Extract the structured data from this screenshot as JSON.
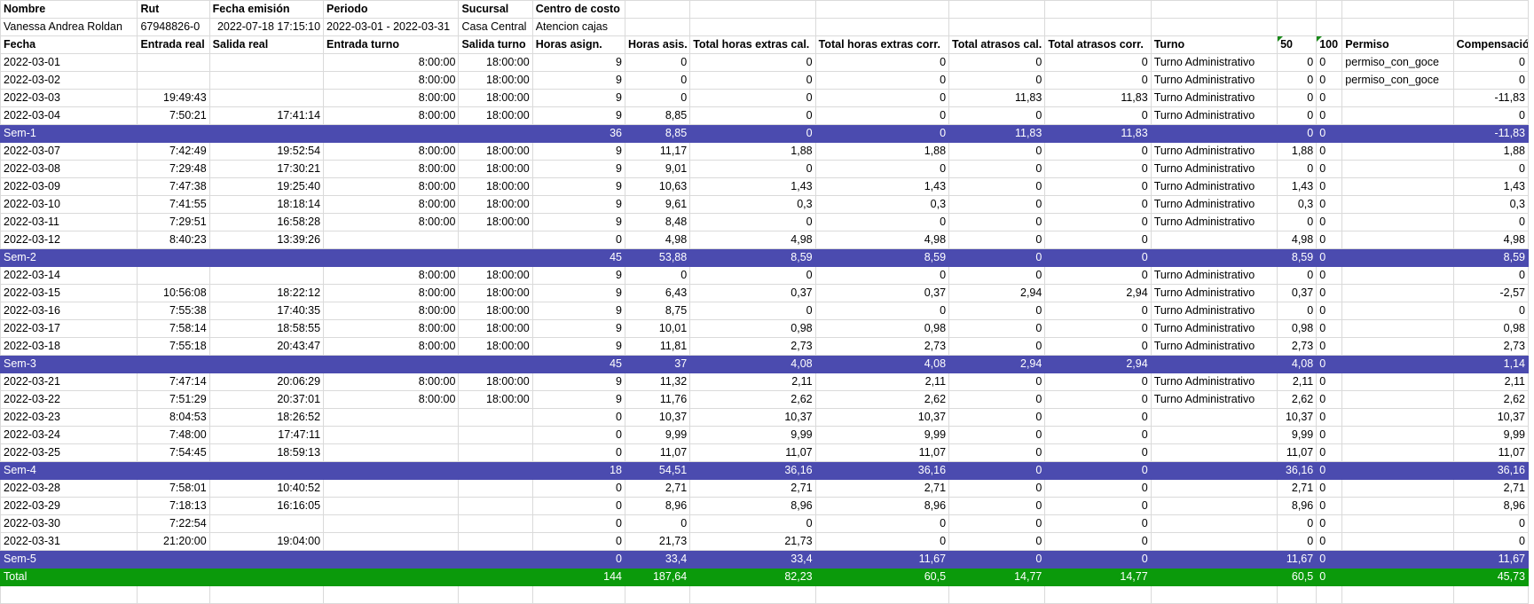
{
  "meta": {
    "labels": [
      "Nombre",
      "Rut",
      "Fecha emisión",
      "Periodo",
      "Sucursal",
      "Centro de costo"
    ],
    "values": [
      "Vanessa Andrea Roldan",
      "67948826-0",
      "2022-07-18 17:15:10",
      "2022-03-01 - 2022-03-31",
      "Casa Central",
      "Atencion cajas"
    ]
  },
  "columns": [
    "Fecha",
    "Entrada real",
    "Salida real",
    "Entrada turno",
    "Salida turno",
    "Horas asign.",
    "Horas asis.",
    "Total horas extras cal.",
    "Total horas extras corr.",
    "Total atrasos cal.",
    "Total atrasos corr.",
    "Turno",
    "50",
    "100",
    "Permiso",
    "Compensación"
  ],
  "rows": [
    {
      "type": "day",
      "cells": [
        "2022-03-01",
        "",
        "",
        "8:00:00",
        "18:00:00",
        "9",
        "0",
        "0",
        "0",
        "0",
        "0",
        "Turno Administrativo",
        "0",
        "0",
        "permiso_con_goce",
        "0"
      ]
    },
    {
      "type": "day",
      "cells": [
        "2022-03-02",
        "",
        "",
        "8:00:00",
        "18:00:00",
        "9",
        "0",
        "0",
        "0",
        "0",
        "0",
        "Turno Administrativo",
        "0",
        "0",
        "permiso_con_goce",
        "0"
      ]
    },
    {
      "type": "day",
      "cells": [
        "2022-03-03",
        "19:49:43",
        "",
        "8:00:00",
        "18:00:00",
        "9",
        "0",
        "0",
        "0",
        "11,83",
        "11,83",
        "Turno Administrativo",
        "0",
        "0",
        "",
        "-11,83"
      ]
    },
    {
      "type": "day",
      "cells": [
        "2022-03-04",
        "7:50:21",
        "17:41:14",
        "8:00:00",
        "18:00:00",
        "9",
        "8,85",
        "0",
        "0",
        "0",
        "0",
        "Turno Administrativo",
        "0",
        "0",
        "",
        "0"
      ]
    },
    {
      "type": "week",
      "cells": [
        "Sem-1",
        "",
        "",
        "",
        "",
        "36",
        "8,85",
        "0",
        "0",
        "11,83",
        "11,83",
        "",
        "0",
        "0",
        "",
        "-11,83"
      ]
    },
    {
      "type": "day",
      "cells": [
        "2022-03-07",
        "7:42:49",
        "19:52:54",
        "8:00:00",
        "18:00:00",
        "9",
        "11,17",
        "1,88",
        "1,88",
        "0",
        "0",
        "Turno Administrativo",
        "1,88",
        "0",
        "",
        "1,88"
      ]
    },
    {
      "type": "day",
      "cells": [
        "2022-03-08",
        "7:29:48",
        "17:30:21",
        "8:00:00",
        "18:00:00",
        "9",
        "9,01",
        "0",
        "0",
        "0",
        "0",
        "Turno Administrativo",
        "0",
        "0",
        "",
        "0"
      ]
    },
    {
      "type": "day",
      "cells": [
        "2022-03-09",
        "7:47:38",
        "19:25:40",
        "8:00:00",
        "18:00:00",
        "9",
        "10,63",
        "1,43",
        "1,43",
        "0",
        "0",
        "Turno Administrativo",
        "1,43",
        "0",
        "",
        "1,43"
      ]
    },
    {
      "type": "day",
      "cells": [
        "2022-03-10",
        "7:41:55",
        "18:18:14",
        "8:00:00",
        "18:00:00",
        "9",
        "9,61",
        "0,3",
        "0,3",
        "0",
        "0",
        "Turno Administrativo",
        "0,3",
        "0",
        "",
        "0,3"
      ]
    },
    {
      "type": "day",
      "cells": [
        "2022-03-11",
        "7:29:51",
        "16:58:28",
        "8:00:00",
        "18:00:00",
        "9",
        "8,48",
        "0",
        "0",
        "0",
        "0",
        "Turno Administrativo",
        "0",
        "0",
        "",
        "0"
      ]
    },
    {
      "type": "day",
      "cells": [
        "2022-03-12",
        "8:40:23",
        "13:39:26",
        "",
        "",
        "0",
        "4,98",
        "4,98",
        "4,98",
        "0",
        "0",
        "",
        "4,98",
        "0",
        "",
        "4,98"
      ]
    },
    {
      "type": "week",
      "cells": [
        "Sem-2",
        "",
        "",
        "",
        "",
        "45",
        "53,88",
        "8,59",
        "8,59",
        "0",
        "0",
        "",
        "8,59",
        "0",
        "",
        "8,59"
      ]
    },
    {
      "type": "day",
      "cells": [
        "2022-03-14",
        "",
        "",
        "8:00:00",
        "18:00:00",
        "9",
        "0",
        "0",
        "0",
        "0",
        "0",
        "Turno Administrativo",
        "0",
        "0",
        "",
        "0"
      ]
    },
    {
      "type": "day",
      "cells": [
        "2022-03-15",
        "10:56:08",
        "18:22:12",
        "8:00:00",
        "18:00:00",
        "9",
        "6,43",
        "0,37",
        "0,37",
        "2,94",
        "2,94",
        "Turno Administrativo",
        "0,37",
        "0",
        "",
        "-2,57"
      ]
    },
    {
      "type": "day",
      "cells": [
        "2022-03-16",
        "7:55:38",
        "17:40:35",
        "8:00:00",
        "18:00:00",
        "9",
        "8,75",
        "0",
        "0",
        "0",
        "0",
        "Turno Administrativo",
        "0",
        "0",
        "",
        "0"
      ]
    },
    {
      "type": "day",
      "cells": [
        "2022-03-17",
        "7:58:14",
        "18:58:55",
        "8:00:00",
        "18:00:00",
        "9",
        "10,01",
        "0,98",
        "0,98",
        "0",
        "0",
        "Turno Administrativo",
        "0,98",
        "0",
        "",
        "0,98"
      ]
    },
    {
      "type": "day",
      "cells": [
        "2022-03-18",
        "7:55:18",
        "20:43:47",
        "8:00:00",
        "18:00:00",
        "9",
        "11,81",
        "2,73",
        "2,73",
        "0",
        "0",
        "Turno Administrativo",
        "2,73",
        "0",
        "",
        "2,73"
      ]
    },
    {
      "type": "week",
      "cells": [
        "Sem-3",
        "",
        "",
        "",
        "",
        "45",
        "37",
        "4,08",
        "4,08",
        "2,94",
        "2,94",
        "",
        "4,08",
        "0",
        "",
        "1,14"
      ]
    },
    {
      "type": "day",
      "cells": [
        "2022-03-21",
        "7:47:14",
        "20:06:29",
        "8:00:00",
        "18:00:00",
        "9",
        "11,32",
        "2,11",
        "2,11",
        "0",
        "0",
        "Turno Administrativo",
        "2,11",
        "0",
        "",
        "2,11"
      ]
    },
    {
      "type": "day",
      "cells": [
        "2022-03-22",
        "7:51:29",
        "20:37:01",
        "8:00:00",
        "18:00:00",
        "9",
        "11,76",
        "2,62",
        "2,62",
        "0",
        "0",
        "Turno Administrativo",
        "2,62",
        "0",
        "",
        "2,62"
      ]
    },
    {
      "type": "day",
      "cells": [
        "2022-03-23",
        "8:04:53",
        "18:26:52",
        "",
        "",
        "0",
        "10,37",
        "10,37",
        "10,37",
        "0",
        "0",
        "",
        "10,37",
        "0",
        "",
        "10,37"
      ]
    },
    {
      "type": "day",
      "cells": [
        "2022-03-24",
        "7:48:00",
        "17:47:11",
        "",
        "",
        "0",
        "9,99",
        "9,99",
        "9,99",
        "0",
        "0",
        "",
        "9,99",
        "0",
        "",
        "9,99"
      ]
    },
    {
      "type": "day",
      "cells": [
        "2022-03-25",
        "7:54:45",
        "18:59:13",
        "",
        "",
        "0",
        "11,07",
        "11,07",
        "11,07",
        "0",
        "0",
        "",
        "11,07",
        "0",
        "",
        "11,07"
      ]
    },
    {
      "type": "week",
      "cells": [
        "Sem-4",
        "",
        "",
        "",
        "",
        "18",
        "54,51",
        "36,16",
        "36,16",
        "0",
        "0",
        "",
        "36,16",
        "0",
        "",
        "36,16"
      ]
    },
    {
      "type": "day",
      "cells": [
        "2022-03-28",
        "7:58:01",
        "10:40:52",
        "",
        "",
        "0",
        "2,71",
        "2,71",
        "2,71",
        "0",
        "0",
        "",
        "2,71",
        "0",
        "",
        "2,71"
      ]
    },
    {
      "type": "day",
      "cells": [
        "2022-03-29",
        "7:18:13",
        "16:16:05",
        "",
        "",
        "0",
        "8,96",
        "8,96",
        "8,96",
        "0",
        "0",
        "",
        "8,96",
        "0",
        "",
        "8,96"
      ]
    },
    {
      "type": "day",
      "cells": [
        "2022-03-30",
        "7:22:54",
        "",
        "",
        "",
        "0",
        "0",
        "0",
        "0",
        "0",
        "0",
        "",
        "0",
        "0",
        "",
        "0"
      ]
    },
    {
      "type": "day",
      "cells": [
        "2022-03-31",
        "21:20:00",
        "19:04:00",
        "",
        "",
        "0",
        "21,73",
        "21,73",
        "0",
        "0",
        "0",
        "",
        "0",
        "0",
        "",
        "0"
      ]
    },
    {
      "type": "week",
      "cells": [
        "Sem-5",
        "",
        "",
        "",
        "",
        "0",
        "33,4",
        "33,4",
        "11,67",
        "0",
        "0",
        "",
        "11,67",
        "0",
        "",
        "11,67"
      ]
    },
    {
      "type": "total",
      "cells": [
        "Total",
        "",
        "",
        "",
        "",
        "144",
        "187,64",
        "82,23",
        "60,5",
        "14,77",
        "14,77",
        "",
        "60,5",
        "0",
        "",
        "45,73"
      ]
    }
  ],
  "colors": {
    "week_bg": "#4b4baf",
    "total_bg": "#0b9a0b",
    "grid": "#dadada"
  }
}
